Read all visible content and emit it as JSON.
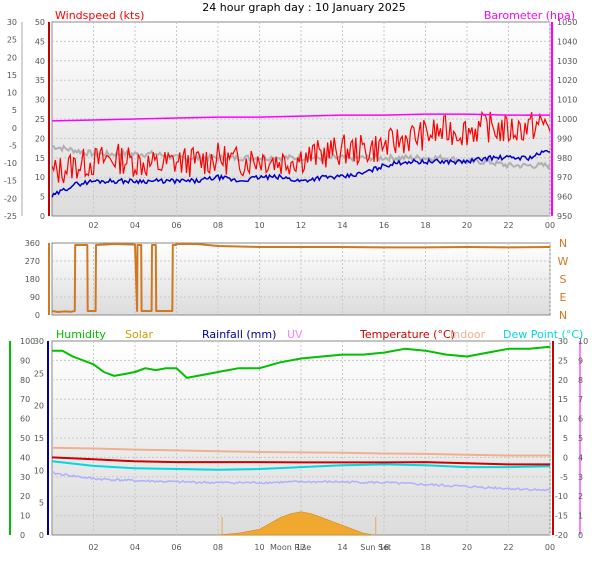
{
  "page": {
    "title": "24 hour graph day : 10 January 2025"
  },
  "colors": {
    "wind_speed": "#ff0000",
    "wind_gust_grey": "#b0b0b0",
    "wind_blue": "#0000c8",
    "barometer": "#ff00ff",
    "direction": "#d07820",
    "humidity": "#00c000",
    "solar": "#c8a000",
    "rainfall": "#0000a0",
    "uv": "#ff80ff",
    "temperature": "#d00000",
    "indoor": "#f0b090",
    "dew_point": "#00d8e0",
    "apparent_purple": "#b0b0ff",
    "plot_bg_top": "#ffffff",
    "plot_bg_bottom": "#dcdcdc",
    "grid": "#c8c8c8"
  },
  "chart_data": [
    {
      "type": "line",
      "title": "24 hour graph day : 10 January 2025",
      "x_ticks": [
        "02",
        "04",
        "06",
        "08",
        "10",
        "12",
        "14",
        "16",
        "18",
        "20",
        "22",
        "00"
      ],
      "left_axis": {
        "label": "Windspeed (kts)",
        "ticks": [
          "0",
          "5",
          "10",
          "15",
          "20",
          "25",
          "30",
          "35",
          "40",
          "45",
          "50"
        ],
        "range": [
          0,
          50
        ]
      },
      "outer_left_axis": {
        "ticks": [
          "-25",
          "-20",
          "-15",
          "-10",
          "-5",
          "0",
          "5",
          "10",
          "15",
          "20",
          "25",
          "30"
        ]
      },
      "right_axis": {
        "label": "Barometer (hpa)",
        "ticks": [
          "950",
          "960",
          "970",
          "980",
          "990",
          "1000",
          "1010",
          "1020",
          "1030",
          "1040",
          "1050"
        ],
        "range": [
          950,
          1050
        ]
      },
      "series": [
        {
          "color_key": "wind_speed",
          "axis": "left",
          "x": [
            0,
            1,
            2,
            3,
            4,
            5,
            6,
            7,
            8,
            9,
            10,
            11,
            12,
            13,
            14,
            15,
            16,
            17,
            18,
            19,
            20,
            21,
            22,
            23,
            24
          ],
          "y": [
            11,
            13,
            14,
            15,
            14,
            13,
            14,
            14,
            15,
            14,
            15,
            14,
            15,
            16,
            17,
            17,
            18,
            20,
            21,
            22,
            22,
            23,
            22,
            23,
            24
          ]
        },
        {
          "color_key": "wind_gust_grey",
          "axis": "left",
          "x": [
            0,
            1,
            2,
            3,
            4,
            5,
            6,
            7,
            8,
            9,
            10,
            11,
            12,
            13,
            14,
            15,
            16,
            17,
            18,
            19,
            20,
            21,
            22,
            23,
            24
          ],
          "y": [
            18,
            17,
            16,
            16,
            16,
            16,
            15,
            15,
            15,
            15,
            15,
            15,
            15,
            15,
            15,
            15,
            15,
            15,
            15,
            15,
            14,
            14,
            13,
            13,
            13
          ]
        },
        {
          "color_key": "wind_blue",
          "axis": "left",
          "x": [
            0,
            1,
            2,
            3,
            4,
            5,
            6,
            7,
            8,
            9,
            10,
            11,
            12,
            13,
            14,
            15,
            16,
            17,
            18,
            19,
            20,
            21,
            22,
            23,
            24
          ],
          "y": [
            5,
            8,
            9,
            9,
            9,
            9,
            9,
            9,
            10,
            9,
            10,
            10,
            9,
            10,
            10,
            11,
            13,
            14,
            14,
            14,
            14,
            15,
            15,
            15,
            17
          ]
        },
        {
          "color_key": "barometer",
          "axis": "right",
          "x": [
            0,
            2,
            4,
            6,
            8,
            10,
            12,
            14,
            16,
            18,
            20,
            22,
            24
          ],
          "y": [
            999,
            999.5,
            1000,
            1000.5,
            1001,
            1001,
            1001.5,
            1002,
            1002,
            1002.5,
            1002.5,
            1002,
            1002
          ]
        }
      ]
    },
    {
      "type": "line",
      "right_labels": [
        "N",
        "W",
        "S",
        "E",
        "N"
      ],
      "left_axis": {
        "ticks": [
          "0",
          "90",
          "180",
          "270",
          "360"
        ],
        "range": [
          0,
          360
        ]
      },
      "series": [
        {
          "color_key": "direction",
          "x": [
            0,
            0.3,
            0.6,
            0.9,
            1.1,
            1.12,
            1.7,
            1.72,
            2.1,
            2.12,
            3,
            4,
            4.1,
            4.12,
            4.3,
            4.32,
            4.8,
            4.82,
            5,
            5.02,
            5.8,
            5.82,
            5.98,
            6,
            7,
            8,
            10,
            12,
            14,
            16,
            18,
            20,
            22,
            24
          ],
          "y": [
            20,
            15,
            18,
            16,
            20,
            350,
            350,
            20,
            20,
            350,
            355,
            352,
            20,
            350,
            350,
            20,
            20,
            350,
            350,
            20,
            20,
            350,
            350,
            355,
            355,
            345,
            340,
            340,
            340,
            338,
            338,
            340,
            338,
            340
          ]
        }
      ]
    },
    {
      "type": "line",
      "legend": [
        "Humidity",
        "Solar",
        "Rainfall (mm)",
        "UV",
        "Temperature (°C)",
        "Indoor",
        "Dew Point (°C)"
      ],
      "x_ticks": [
        "02",
        "04",
        "06",
        "08",
        "10",
        "Moon Rise",
        "12",
        "14",
        "Sun Set",
        "16",
        "18",
        "20",
        "22",
        "00"
      ],
      "humidity_axis": {
        "ticks": [
          "0",
          "10",
          "20",
          "30",
          "40",
          "50",
          "60",
          "70",
          "80",
          "90",
          "100"
        ],
        "range": [
          0,
          100
        ]
      },
      "rain_axis": {
        "ticks": [
          "0",
          "5",
          "10",
          "15",
          "20",
          "25",
          "30"
        ],
        "range": [
          0,
          30
        ]
      },
      "uv_axis": {
        "ticks": [
          "0",
          "1",
          "2",
          "3",
          "4",
          "5",
          "6",
          "7",
          "8",
          "9",
          "10"
        ],
        "range": [
          0,
          10
        ]
      },
      "temp_axis": {
        "ticks": [
          "-20",
          "-15",
          "-10",
          "-5",
          "0",
          "5",
          "10",
          "15",
          "20",
          "25",
          "30"
        ],
        "range": [
          -20,
          30
        ]
      },
      "series": [
        {
          "name": "Humidity",
          "color_key": "humidity",
          "axis": "humidity",
          "x": [
            0,
            0.5,
            1,
            2,
            2.5,
            3,
            3.5,
            4,
            4.5,
            5,
            5.5,
            6,
            6.5,
            7,
            7.5,
            8,
            9,
            10,
            11,
            12,
            13,
            14,
            15,
            16,
            17,
            18,
            19,
            20,
            21,
            22,
            23,
            24
          ],
          "y": [
            95,
            95,
            92,
            88,
            84,
            82,
            83,
            84,
            86,
            85,
            86,
            86,
            81,
            82,
            83,
            84,
            86,
            86,
            89,
            91,
            92,
            93,
            93,
            94,
            96,
            95,
            93,
            92,
            94,
            96,
            96,
            97
          ]
        },
        {
          "name": "Temperature (°C)",
          "color_key": "temperature",
          "axis": "temp",
          "x": [
            0,
            2,
            4,
            6,
            8,
            10,
            12,
            14,
            16,
            18,
            20,
            22,
            24
          ],
          "y": [
            0,
            -0.5,
            -1,
            -1.2,
            -1.2,
            -1.2,
            -1.3,
            -1.3,
            -1.3,
            -1.2,
            -1.5,
            -1.8,
            -1.8
          ]
        },
        {
          "name": "Dew Point (°C)",
          "color_key": "dew_point",
          "axis": "temp",
          "x": [
            0,
            2,
            4,
            6,
            8,
            10,
            12,
            14,
            16,
            18,
            20,
            22,
            24
          ],
          "y": [
            -1,
            -2.2,
            -2.8,
            -3,
            -3.2,
            -3,
            -2.5,
            -2,
            -1.8,
            -2,
            -2.5,
            -2.5,
            -2.3
          ]
        },
        {
          "name": "Indoor",
          "color_key": "indoor",
          "axis": "temp",
          "x": [
            0,
            2,
            4,
            6,
            8,
            10,
            12,
            14,
            16,
            18,
            20,
            22,
            24
          ],
          "y": [
            2.5,
            2.3,
            2,
            1.8,
            1.6,
            1.4,
            1.3,
            1.2,
            1.0,
            0.9,
            0.7,
            0.5,
            0.5
          ]
        },
        {
          "name": "apparent",
          "color_key": "apparent_purple",
          "axis": "temp",
          "x": [
            0,
            2,
            4,
            6,
            8,
            10,
            12,
            14,
            16,
            18,
            20,
            22,
            24
          ],
          "y": [
            -4,
            -5.5,
            -6,
            -6.3,
            -6.5,
            -6.5,
            -6.3,
            -6.3,
            -6.5,
            -7,
            -7.5,
            -8,
            -8.5
          ]
        },
        {
          "name": "Solar",
          "color_key": "solar",
          "axis": "uv",
          "type": "area",
          "x": [
            8,
            9,
            10,
            10.5,
            11,
            11.5,
            12,
            12.5,
            13,
            13.5,
            14,
            14.5,
            15,
            15.5
          ],
          "y": [
            0,
            0.1,
            0.3,
            0.6,
            0.9,
            1.1,
            1.2,
            1.1,
            0.9,
            0.7,
            0.5,
            0.3,
            0.1,
            0
          ]
        }
      ]
    }
  ]
}
